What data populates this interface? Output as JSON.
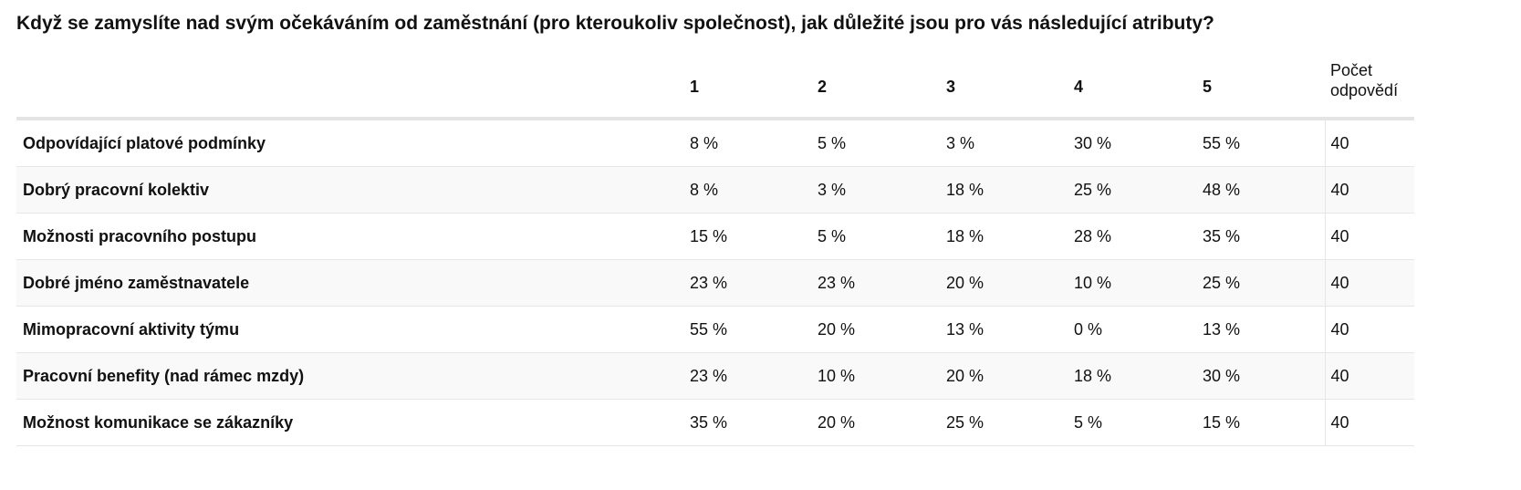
{
  "title": "Když se zamyslíte nad svým očekáváním od zaměstnání (pro kteroukoliv společnost), jak důležité jsou pro vás následující atributy?",
  "table": {
    "header": [
      "1",
      "2",
      "3",
      "4",
      "5",
      "Počet odpovědí"
    ],
    "rows": [
      [
        "Odpovídající platové podmínky",
        "8 %",
        "5 %",
        "3 %",
        "30 %",
        "55 %",
        "40"
      ],
      [
        "Dobrý pracovní kolektiv",
        "8 %",
        "3 %",
        "18 %",
        "25 %",
        "48 %",
        "40"
      ],
      [
        "Možnosti pracovního postupu",
        "15 %",
        "5 %",
        "18 %",
        "28 %",
        "35 %",
        "40"
      ],
      [
        "Dobré jméno zaměstnavatele",
        "23 %",
        "23 %",
        "20 %",
        "10 %",
        "25 %",
        "40"
      ],
      [
        "Mimopracovní aktivity týmu",
        "55 %",
        "20 %",
        "13 %",
        "0 %",
        "13 %",
        "40"
      ],
      [
        "Pracovní benefity (nad rámec mzdy)",
        "23 %",
        "10 %",
        "20 %",
        "18 %",
        "30 %",
        "40"
      ],
      [
        "Možnost komunikace se zákazníky",
        "35 %",
        "20 %",
        "25 %",
        "5 %",
        "15 %",
        "40"
      ]
    ]
  }
}
